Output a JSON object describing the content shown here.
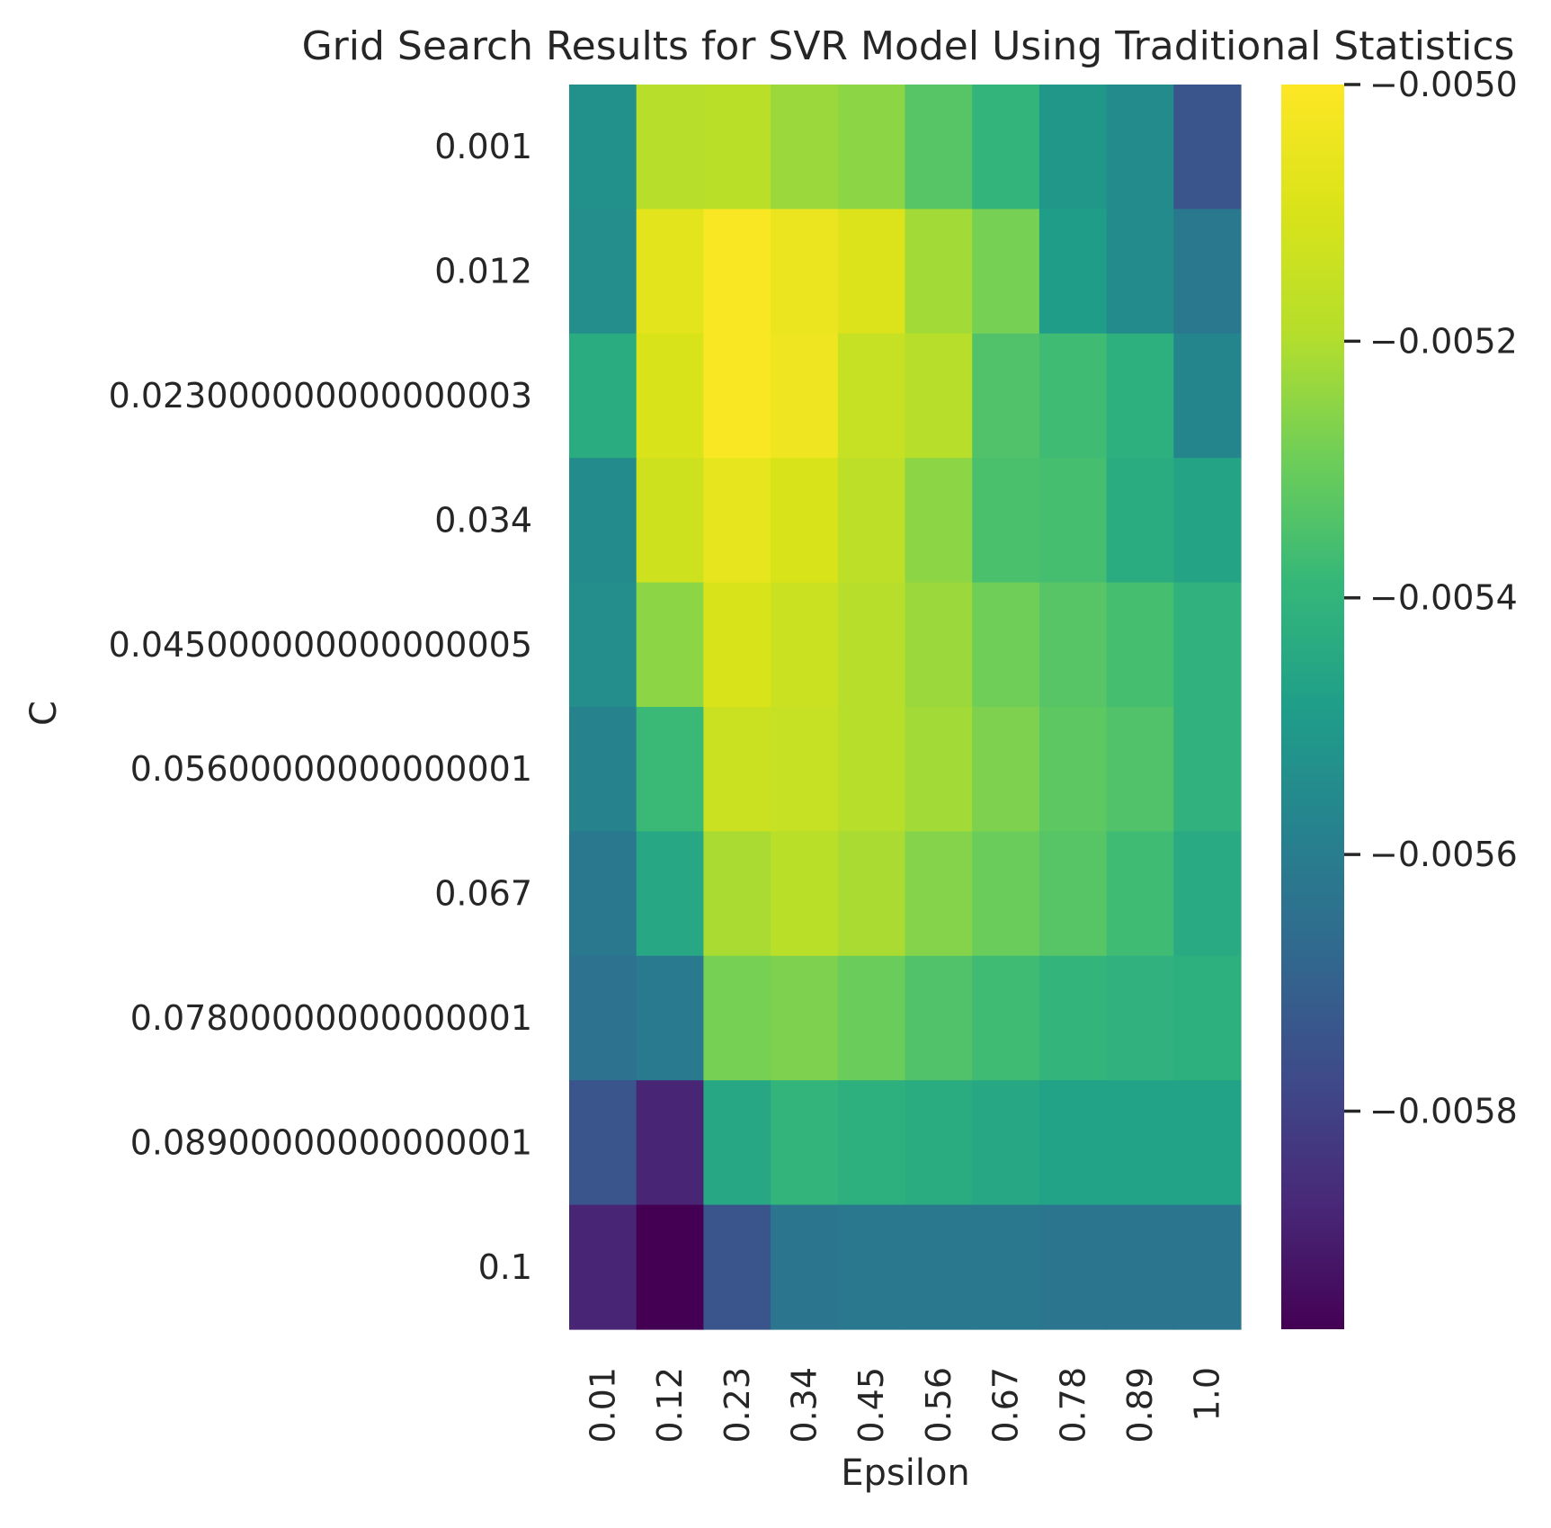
{
  "chart_data": {
    "type": "heatmap",
    "title": "Grid Search Results for SVR Model Using Traditional Statistics",
    "xlabel": "Epsilon",
    "ylabel": "C",
    "x": [
      "0.01",
      "0.12",
      "0.23",
      "0.34",
      "0.45",
      "0.56",
      "0.67",
      "0.78",
      "0.89",
      "1.0"
    ],
    "y": [
      "0.001",
      "0.012",
      "0.023000000000000003",
      "0.034",
      "0.045000000000000005",
      "0.05600000000000001",
      "0.067",
      "0.07800000000000001",
      "0.08900000000000001",
      "0.1"
    ],
    "values": [
      [
        -0.00553,
        -0.00519,
        -0.00518,
        -0.00523,
        -0.00525,
        -0.00533,
        -0.0054,
        -0.00551,
        -0.00555,
        -0.00574
      ],
      [
        -0.00554,
        -0.00507,
        -0.00501,
        -0.00505,
        -0.00509,
        -0.00522,
        -0.00528,
        -0.00549,
        -0.00555,
        -0.00562
      ],
      [
        -0.00543,
        -0.0051,
        -0.00501,
        -0.00504,
        -0.00515,
        -0.00519,
        -0.00534,
        -0.00537,
        -0.00542,
        -0.00557
      ],
      [
        -0.00555,
        -0.00513,
        -0.00506,
        -0.0051,
        -0.00517,
        -0.00525,
        -0.00535,
        -0.00536,
        -0.00543,
        -0.00546
      ],
      [
        -0.00554,
        -0.00525,
        -0.0051,
        -0.00514,
        -0.00519,
        -0.00523,
        -0.00529,
        -0.00533,
        -0.00536,
        -0.00541
      ],
      [
        -0.00558,
        -0.00538,
        -0.00514,
        -0.00515,
        -0.00519,
        -0.00522,
        -0.00527,
        -0.00532,
        -0.00534,
        -0.00541
      ],
      [
        -0.00562,
        -0.00545,
        -0.00521,
        -0.00518,
        -0.00521,
        -0.00526,
        -0.0053,
        -0.00533,
        -0.00537,
        -0.00544
      ],
      [
        -0.00564,
        -0.00561,
        -0.00528,
        -0.00527,
        -0.0053,
        -0.00534,
        -0.00537,
        -0.0054,
        -0.00541,
        -0.00542
      ],
      [
        -0.00574,
        -0.00588,
        -0.00545,
        -0.0054,
        -0.00542,
        -0.00543,
        -0.00545,
        -0.00547,
        -0.00547,
        -0.00547
      ],
      [
        -0.00588,
        -0.00597,
        -0.00574,
        -0.00563,
        -0.00562,
        -0.00562,
        -0.00562,
        -0.00563,
        -0.00563,
        -0.00563
      ]
    ],
    "colormap": "viridis",
    "vmin": -0.00597,
    "vmax": -0.005,
    "colorbar": {
      "ticks": [
        -0.005,
        -0.0052,
        -0.0054,
        -0.0056,
        -0.0058
      ],
      "tick_labels": [
        "−0.0050",
        "−0.0052",
        "−0.0054",
        "−0.0056",
        "−0.0058"
      ]
    },
    "grid": false
  }
}
